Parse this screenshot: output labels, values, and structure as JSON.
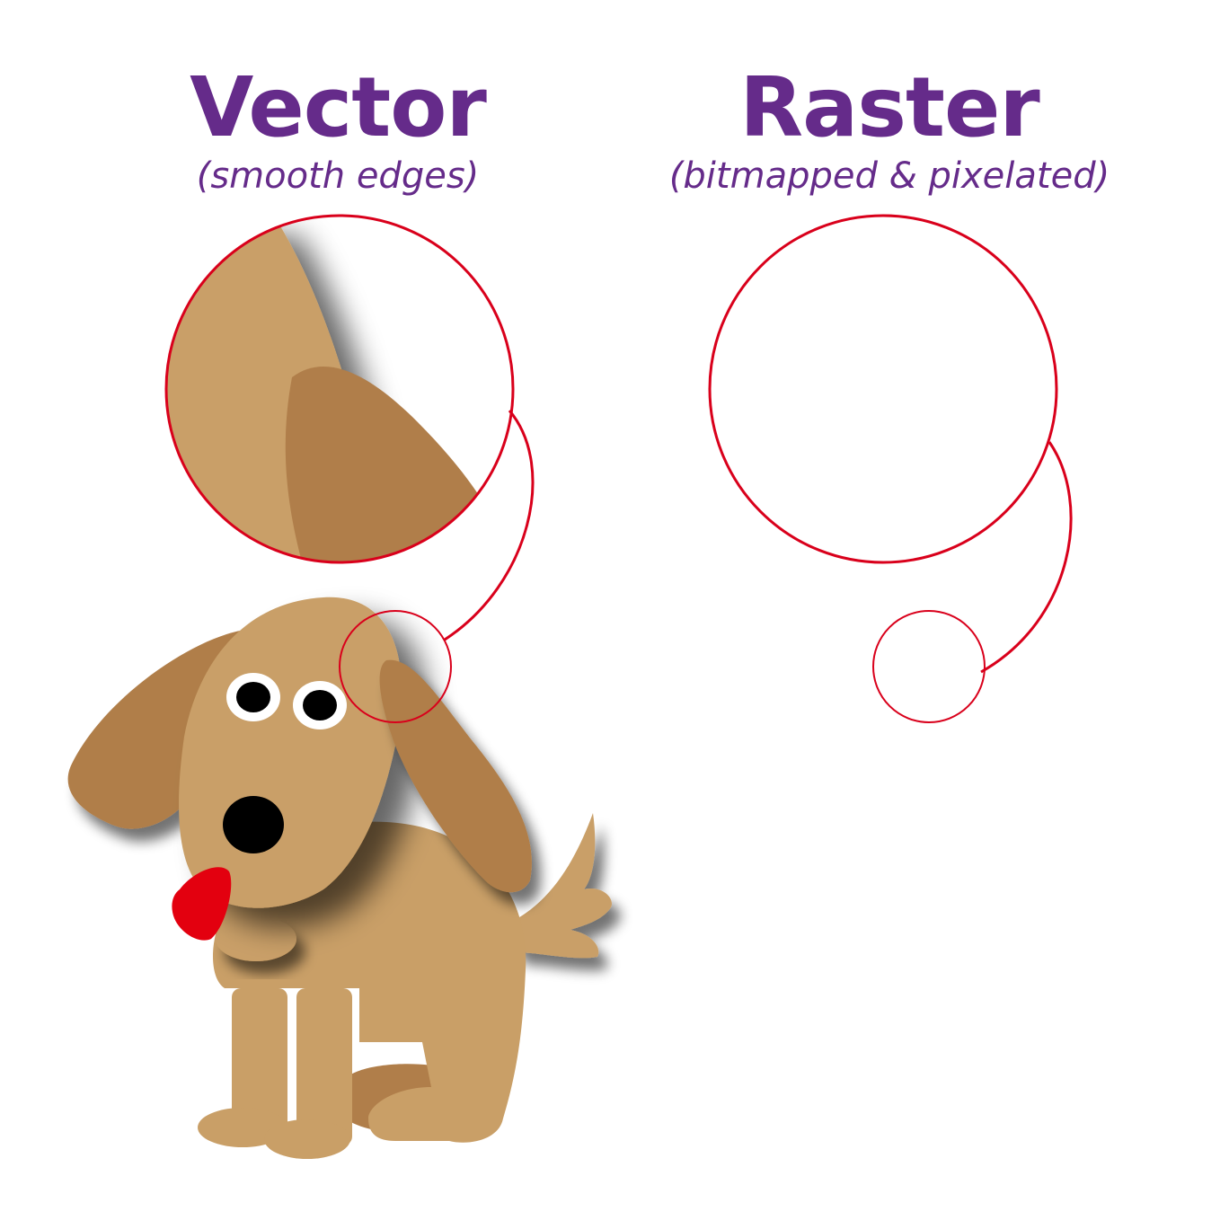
{
  "vector": {
    "title": "Vector",
    "subtitle": "(smooth edges)"
  },
  "raster": {
    "title": "Raster",
    "subtitle": "(bitmapped & pixelated)"
  },
  "colors": {
    "heading": "#652b8a",
    "fur": "#c99f67",
    "ear": "#b07e4a",
    "tongue": "#e3000f",
    "magnifier": "#d9001b",
    "eye": "#000000"
  }
}
